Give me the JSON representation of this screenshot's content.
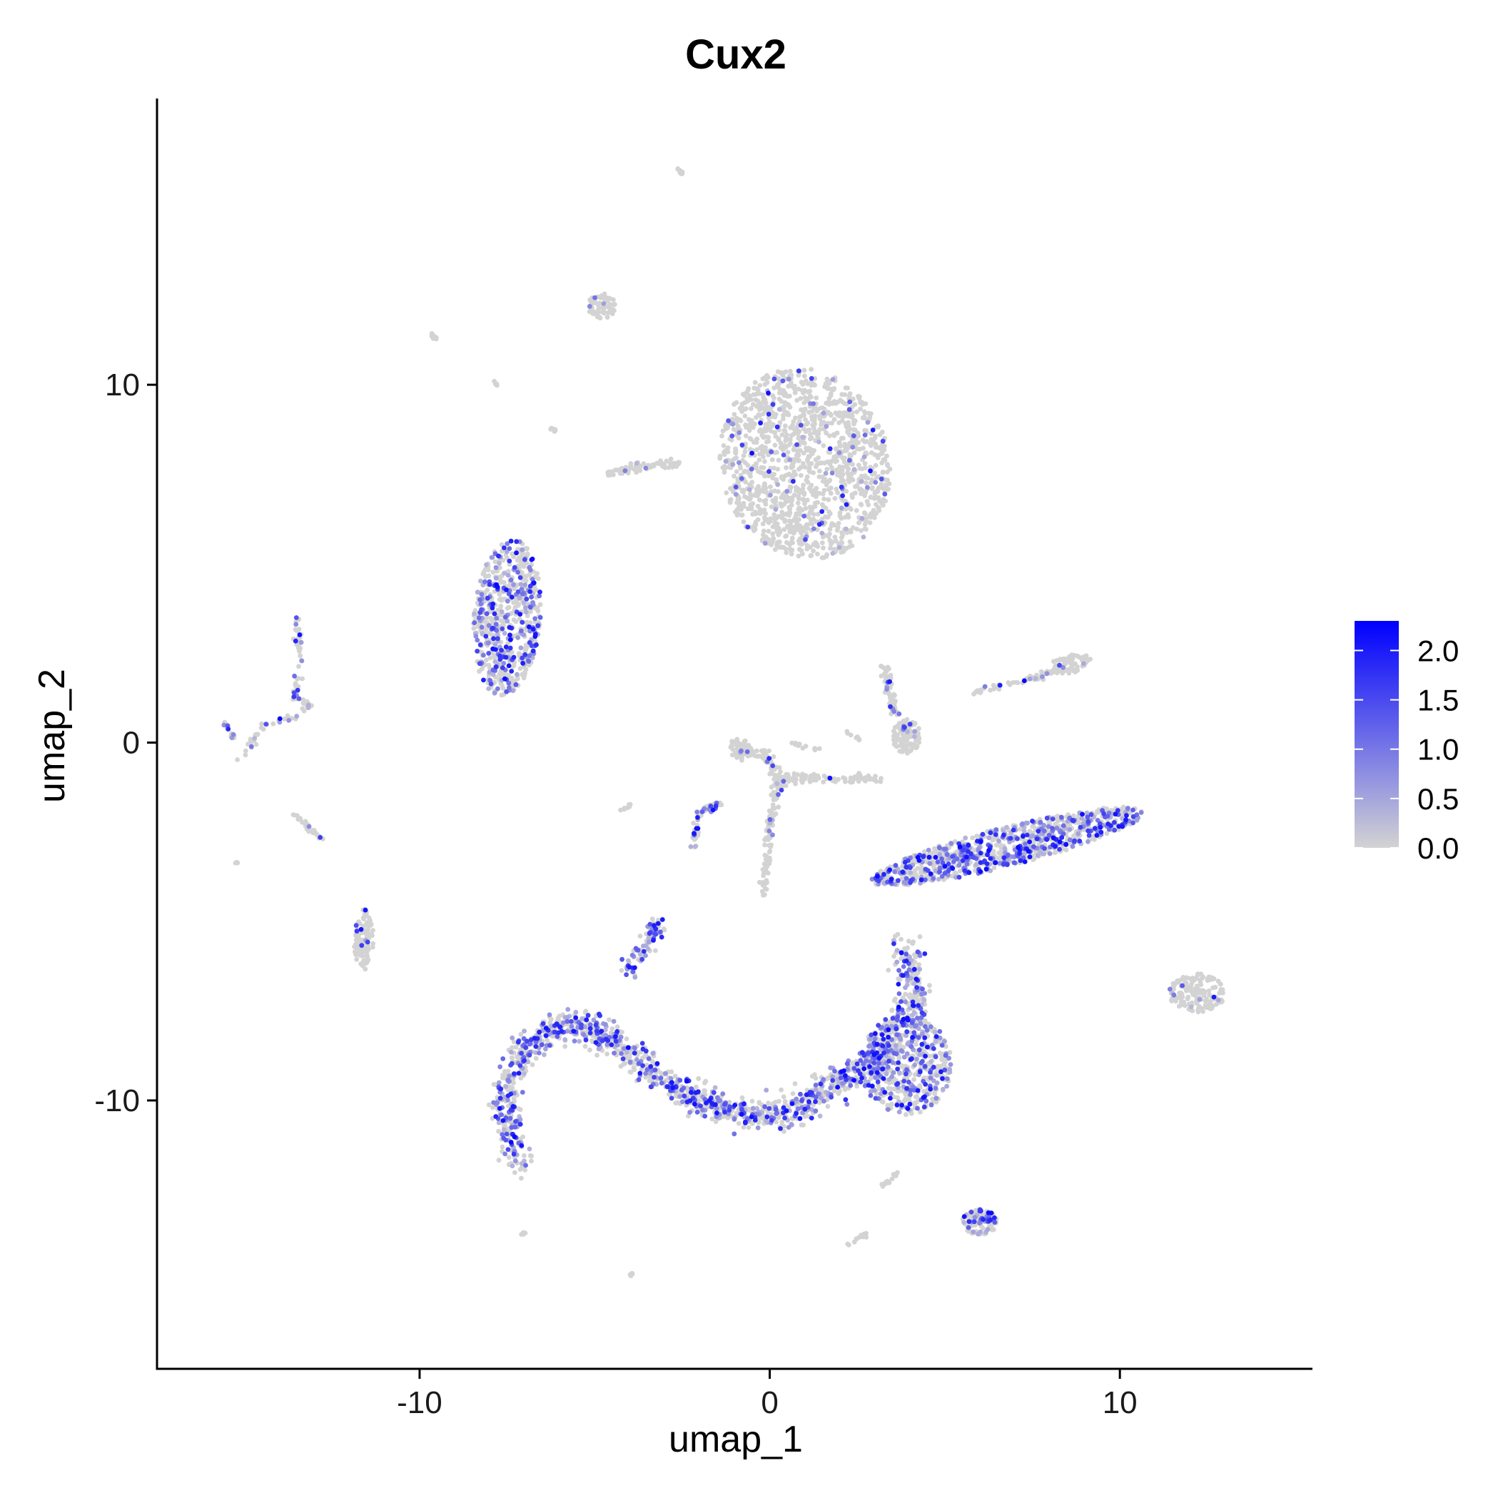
{
  "chart_data": {
    "type": "scatter",
    "title": "Cux2",
    "xlabel": "umap_1",
    "ylabel": "umap_2",
    "xlim": [
      -17.5,
      15.5
    ],
    "ylim": [
      -17.5,
      18
    ],
    "x_ticks": [
      -10,
      0,
      10
    ],
    "x_tick_labels": [
      "-10",
      "0",
      "10"
    ],
    "y_ticks": [
      -10,
      0,
      10
    ],
    "y_tick_labels": [
      "-10",
      "0",
      "10"
    ],
    "grid": false,
    "legend_placement": "right",
    "color_scale": {
      "low_color": "#d3d3d3",
      "high_color": "#0000ff",
      "min": 0,
      "max": 2.3,
      "ticks": [
        0,
        0.5,
        1,
        1.5,
        2
      ],
      "tick_labels": [
        "0.0",
        "0.5",
        "1.0",
        "1.5",
        "2.0"
      ]
    },
    "clusters": [
      {
        "kind": "ellipse",
        "cx": 1.0,
        "cy": 7.8,
        "rx": 2.4,
        "ry": 2.7,
        "rot": 20,
        "n": 1400,
        "expr": 0.06
      },
      {
        "kind": "ellipse",
        "cx": -7.5,
        "cy": 3.5,
        "rx": 0.95,
        "ry": 2.2,
        "rot": -5,
        "n": 650,
        "expr": 0.35
      },
      {
        "kind": "ellipse",
        "cx": 6.8,
        "cy": -2.9,
        "rx": 4.0,
        "ry": 0.55,
        "rot": 14,
        "n": 900,
        "expr": 0.5
      },
      {
        "kind": "ellipse",
        "cx": 3.9,
        "cy": -9.0,
        "rx": 1.3,
        "ry": 1.4,
        "rot": 0,
        "n": 550,
        "expr": 0.4
      },
      {
        "kind": "ellipse",
        "cx": 12.2,
        "cy": -7.0,
        "rx": 0.8,
        "ry": 0.55,
        "rot": 0,
        "n": 160,
        "expr": 0.05
      },
      {
        "kind": "ellipse",
        "cx": 6.0,
        "cy": -13.4,
        "rx": 0.5,
        "ry": 0.35,
        "rot": 0,
        "n": 110,
        "expr": 0.3
      },
      {
        "kind": "ellipse",
        "cx": -4.8,
        "cy": 12.2,
        "rx": 0.4,
        "ry": 0.35,
        "rot": 0,
        "n": 70,
        "expr": 0.05
      },
      {
        "kind": "ellipse",
        "cx": -11.6,
        "cy": -5.5,
        "rx": 0.28,
        "ry": 0.85,
        "rot": 0,
        "n": 110,
        "expr": 0.05
      },
      {
        "kind": "ellipse",
        "cx": 3.9,
        "cy": 0.2,
        "rx": 0.4,
        "ry": 0.5,
        "rot": 0,
        "n": 120,
        "expr": 0.08
      },
      {
        "kind": "ellipse",
        "cx": -0.8,
        "cy": -0.2,
        "rx": 0.35,
        "ry": 0.3,
        "rot": 0,
        "n": 50,
        "expr": 0.03
      },
      {
        "kind": "ellipse",
        "cx": 8.6,
        "cy": 2.2,
        "rx": 0.6,
        "ry": 0.25,
        "rot": 10,
        "n": 80,
        "expr": 0.05
      },
      {
        "kind": "path",
        "pts": [
          [
            -7.2,
            -11.8
          ],
          [
            -7.6,
            -10.0
          ],
          [
            -7.0,
            -8.5
          ],
          [
            -5.8,
            -7.8
          ],
          [
            -4.6,
            -8.2
          ],
          [
            -3.2,
            -9.4
          ],
          [
            -1.8,
            -10.1
          ],
          [
            -0.5,
            -10.4
          ],
          [
            0.8,
            -10.3
          ],
          [
            2.0,
            -9.4
          ],
          [
            3.0,
            -8.9
          ],
          [
            4.2,
            -7.2
          ],
          [
            3.8,
            -5.6
          ]
        ],
        "spread": 0.42,
        "n": 1500,
        "expr": 0.45
      },
      {
        "kind": "path",
        "pts": [
          [
            -4.1,
            -6.5
          ],
          [
            -3.4,
            -5.4
          ],
          [
            -3.2,
            -5.1
          ]
        ],
        "spread": 0.22,
        "n": 100,
        "expr": 0.4
      },
      {
        "kind": "path",
        "pts": [
          [
            -0.2,
            -4.3
          ],
          [
            0.0,
            -2.5
          ],
          [
            0.2,
            -1.0
          ],
          [
            1.5,
            -1.0
          ],
          [
            3.1,
            -1.0
          ]
        ],
        "spread": 0.12,
        "n": 220,
        "expr": 0.05
      },
      {
        "kind": "path",
        "pts": [
          [
            -1.0,
            0.0
          ],
          [
            -0.1,
            -0.4
          ],
          [
            0.4,
            -1.2
          ]
        ],
        "spread": 0.12,
        "n": 90,
        "expr": 0.05
      },
      {
        "kind": "path",
        "pts": [
          [
            -2.2,
            -3.0
          ],
          [
            -2.0,
            -1.9
          ],
          [
            -1.4,
            -1.7
          ]
        ],
        "spread": 0.1,
        "n": 60,
        "expr": 0.35
      },
      {
        "kind": "path",
        "pts": [
          [
            3.3,
            2.1
          ],
          [
            3.6,
            0.8
          ]
        ],
        "spread": 0.12,
        "n": 60,
        "expr": 0.2
      },
      {
        "kind": "path",
        "pts": [
          [
            5.7,
            1.4
          ],
          [
            7.5,
            1.8
          ],
          [
            8.5,
            2.1
          ]
        ],
        "spread": 0.1,
        "n": 60,
        "expr": 0.15
      },
      {
        "kind": "path",
        "pts": [
          [
            -4.7,
            7.5
          ],
          [
            -3.7,
            7.7
          ],
          [
            -2.6,
            7.8
          ]
        ],
        "spread": 0.12,
        "n": 80,
        "expr": 0.05
      },
      {
        "kind": "path",
        "pts": [
          [
            -13.5,
            3.5
          ],
          [
            -13.4,
            2.3
          ],
          [
            -13.6,
            1.3
          ],
          [
            -13.1,
            1.0
          ],
          [
            -14.5,
            0.4
          ],
          [
            -15.2,
            -0.5
          ]
        ],
        "spread": 0.1,
        "n": 100,
        "expr": 0.2
      },
      {
        "kind": "path",
        "pts": [
          [
            -15.6,
            0.6
          ],
          [
            -15.3,
            0.1
          ]
        ],
        "spread": 0.06,
        "n": 15,
        "expr": 0.5
      },
      {
        "kind": "path",
        "pts": [
          [
            -13.6,
            -2.0
          ],
          [
            -12.8,
            -2.7
          ]
        ],
        "spread": 0.06,
        "n": 30,
        "expr": 0.05
      },
      {
        "kind": "path",
        "pts": [
          [
            -9.7,
            11.4
          ],
          [
            -9.5,
            11.3
          ]
        ],
        "spread": 0.05,
        "n": 15,
        "expr": 0.0
      },
      {
        "kind": "path",
        "pts": [
          [
            -2.6,
            16.0
          ],
          [
            -2.5,
            15.9
          ]
        ],
        "spread": 0.05,
        "n": 12,
        "expr": 0.0
      },
      {
        "kind": "path",
        "pts": [
          [
            -6.3,
            8.8
          ],
          [
            -6.1,
            8.7
          ]
        ],
        "spread": 0.04,
        "n": 8,
        "expr": 0.0
      },
      {
        "kind": "path",
        "pts": [
          [
            -7.9,
            10.1
          ],
          [
            -7.8,
            10.0
          ]
        ],
        "spread": 0.04,
        "n": 6,
        "expr": 0.0
      },
      {
        "kind": "path",
        "pts": [
          [
            3.2,
            -12.4
          ],
          [
            3.7,
            -12.0
          ]
        ],
        "spread": 0.05,
        "n": 15,
        "expr": 0.0
      },
      {
        "kind": "path",
        "pts": [
          [
            2.1,
            -14.1
          ],
          [
            2.8,
            -13.7
          ]
        ],
        "spread": 0.05,
        "n": 15,
        "expr": 0.0
      },
      {
        "kind": "path",
        "pts": [
          [
            -7.1,
            -13.8
          ],
          [
            -7.0,
            -13.7
          ]
        ],
        "spread": 0.04,
        "n": 6,
        "expr": 0.0
      },
      {
        "kind": "path",
        "pts": [
          [
            -4.0,
            -14.9
          ],
          [
            -3.9,
            -14.8
          ]
        ],
        "spread": 0.04,
        "n": 6,
        "expr": 0.0
      },
      {
        "kind": "path",
        "pts": [
          [
            -4.3,
            -1.9
          ],
          [
            -3.9,
            -1.7
          ]
        ],
        "spread": 0.05,
        "n": 8,
        "expr": 0.0
      },
      {
        "kind": "path",
        "pts": [
          [
            -15.3,
            -3.4
          ],
          [
            -15.2,
            -3.3
          ]
        ],
        "spread": 0.04,
        "n": 4,
        "expr": 0.0
      },
      {
        "kind": "path",
        "pts": [
          [
            0.6,
            0.0
          ],
          [
            1.4,
            -0.2
          ]
        ],
        "spread": 0.05,
        "n": 12,
        "expr": 0.0
      },
      {
        "kind": "path",
        "pts": [
          [
            2.2,
            0.3
          ],
          [
            2.6,
            0.1
          ]
        ],
        "spread": 0.05,
        "n": 8,
        "expr": 0.0
      }
    ]
  }
}
